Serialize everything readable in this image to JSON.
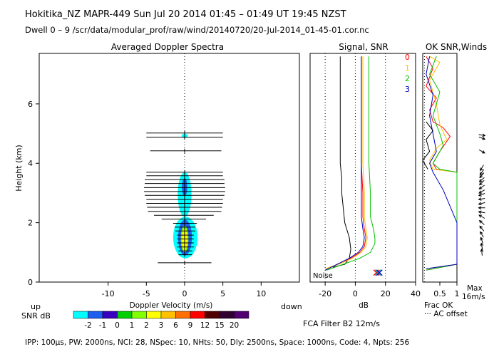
{
  "header": {
    "title": "Hokitika_NZ   MAPR-449   Sun Jul 20 2014 01:45 – 01:49 UT 19:45 NZST",
    "subtitle": "Dwell   0 –   9    /scr/data/modular_prof/raw/wind/20140720/20-Jul-2014_01-45-01.cor.nc"
  },
  "footer": {
    "params": "IPP: 100µs,  PW: 2000ns,  NCI:  28,  NSpec: 10, NHts: 50,  Dly: 2500ns,  Space: 1000ns,  Code: 4,  Npts: 256",
    "fca_filter": "FCA Filter B2 12m/s"
  },
  "colorbar": {
    "label_up": "up",
    "label_down": "down",
    "label_snr": "SNR dB",
    "ticks": [
      "-2",
      "-1",
      "0",
      "1",
      "2",
      "3",
      "6",
      "9",
      "12",
      "15",
      "20"
    ],
    "colors": [
      "#00ffff",
      "#1e5ef0",
      "#3a00c0",
      "#00d000",
      "#80ff00",
      "#ffff00",
      "#ffc000",
      "#ff7000",
      "#ff0000",
      "#500000",
      "#300030",
      "#500070"
    ]
  },
  "chart_data": [
    {
      "type": "heatmap",
      "title": "Averaged Doppler Spectra",
      "xlabel": "Doppler Velocity (m/s)",
      "ylabel": "Height (km)",
      "xlim": [
        -19,
        15
      ],
      "ylim": [
        0,
        7.7
      ],
      "xticks": [
        -10,
        -5,
        0,
        5,
        10
      ],
      "yticks": [
        0,
        2,
        4,
        6
      ],
      "zero_line": "dotted",
      "error_bars": [
        {
          "h": 5.02,
          "lo": -5,
          "hi": 5
        },
        {
          "h": 4.88,
          "lo": -5,
          "hi": 5
        },
        {
          "h": 4.42,
          "lo": -4.5,
          "hi": 4.8
        },
        {
          "h": 3.7,
          "lo": -5,
          "hi": 5
        },
        {
          "h": 3.58,
          "lo": -5,
          "hi": 5
        },
        {
          "h": 3.45,
          "lo": -5.2,
          "hi": 5.2
        },
        {
          "h": 3.32,
          "lo": -5.2,
          "hi": 5.2
        },
        {
          "h": 3.18,
          "lo": -5.3,
          "hi": 5.3
        },
        {
          "h": 3.05,
          "lo": -5.3,
          "hi": 5.3
        },
        {
          "h": 2.92,
          "lo": -5.2,
          "hi": 5.2
        },
        {
          "h": 2.78,
          "lo": -5,
          "hi": 5
        },
        {
          "h": 2.65,
          "lo": -5,
          "hi": 5
        },
        {
          "h": 2.52,
          "lo": -4.9,
          "hi": 4.9
        },
        {
          "h": 2.38,
          "lo": -4.8,
          "hi": 4.8
        },
        {
          "h": 2.25,
          "lo": -4,
          "hi": 3.8
        },
        {
          "h": 2.12,
          "lo": -3,
          "hi": 2.8
        },
        {
          "h": 1.98,
          "lo": -1.5,
          "hi": 1.6
        },
        {
          "h": 1.85,
          "lo": -1.3,
          "hi": 1.4
        },
        {
          "h": 1.72,
          "lo": -1.2,
          "hi": 1.4
        },
        {
          "h": 1.58,
          "lo": -1,
          "hi": 1.2
        },
        {
          "h": 1.45,
          "lo": -1,
          "hi": 1.2
        },
        {
          "h": 1.32,
          "lo": -1,
          "hi": 1.2
        },
        {
          "h": 1.18,
          "lo": -1,
          "hi": 1.2
        },
        {
          "h": 1.05,
          "lo": -0.8,
          "hi": 1
        },
        {
          "h": 0.92,
          "lo": -0.8,
          "hi": 1
        },
        {
          "h": 0.65,
          "lo": -3.5,
          "hi": 3.5
        }
      ],
      "snr_blobs": [
        {
          "h0": 0.8,
          "h1": 2.2,
          "v": 0.1,
          "w": 1.6,
          "color": "#00ffff"
        },
        {
          "h0": 2.2,
          "h1": 3.7,
          "v": 0,
          "w": 0.9,
          "color": "#00ffff"
        },
        {
          "h0": 0.9,
          "h1": 2.1,
          "v": 0.05,
          "w": 0.9,
          "color": "#1e5ef0"
        },
        {
          "h0": 1.0,
          "h1": 1.9,
          "v": 0,
          "w": 0.5,
          "color": "#80ff00"
        },
        {
          "h0": 1.05,
          "h1": 1.8,
          "v": 0,
          "w": 0.35,
          "color": "#ffff00"
        },
        {
          "h0": 2.9,
          "h1": 3.5,
          "v": 0,
          "w": 0.35,
          "color": "#1e5ef0"
        },
        {
          "h0": 4.85,
          "h1": 5.0,
          "v": 0,
          "w": 0.4,
          "color": "#00ffff"
        }
      ]
    },
    {
      "type": "line",
      "title": "Signal, SNR",
      "xlabel": "dB",
      "xlim": [
        -30,
        40
      ],
      "xticks": [
        -20,
        0,
        20,
        40
      ],
      "ylim": [
        0,
        7.7
      ],
      "annotation": "Noise",
      "dotted_x": [
        -20,
        0,
        20
      ],
      "series": [
        {
          "name": "noise",
          "color": "#000000",
          "points": [
            [
              -15,
              0.5
            ],
            [
              -7,
              0.6
            ],
            [
              -4,
              0.8
            ],
            [
              -3,
              1.1
            ],
            [
              -4,
              1.5
            ],
            [
              -7,
              2.0
            ],
            [
              -8,
              2.5
            ],
            [
              -9,
              3.0
            ],
            [
              -9,
              3.5
            ],
            [
              -10,
              4.0
            ],
            [
              -10,
              5.0
            ],
            [
              -10,
              6.0
            ],
            [
              -10,
              7.6
            ]
          ]
        },
        {
          "name": "0",
          "color": "#ff0000",
          "points": [
            [
              -20,
              0.4
            ],
            [
              -12,
              0.6
            ],
            [
              -3,
              0.8
            ],
            [
              3,
              1.0
            ],
            [
              6,
              1.2
            ],
            [
              7,
              1.5
            ],
            [
              6,
              1.8
            ],
            [
              5,
              2.2
            ],
            [
              5,
              3.0
            ],
            [
              4,
              4.0
            ],
            [
              4,
              5.0
            ],
            [
              4,
              6.0
            ],
            [
              4,
              7.6
            ]
          ]
        },
        {
          "name": "1",
          "color": "#ffc000",
          "points": [
            [
              -20,
              0.45
            ],
            [
              -11,
              0.6
            ],
            [
              -2,
              0.8
            ],
            [
              4,
              1.0
            ],
            [
              7,
              1.2
            ],
            [
              8,
              1.5
            ],
            [
              7,
              1.8
            ],
            [
              6,
              2.2
            ],
            [
              6,
              3.0
            ],
            [
              5,
              4.0
            ],
            [
              5,
              5.0
            ],
            [
              5,
              6.0
            ],
            [
              5,
              7.6
            ]
          ]
        },
        {
          "name": "2",
          "color": "#00c000",
          "points": [
            [
              -19,
              0.4
            ],
            [
              -8,
              0.6
            ],
            [
              3,
              0.8
            ],
            [
              10,
              1.0
            ],
            [
              13,
              1.3
            ],
            [
              13,
              1.5
            ],
            [
              12,
              1.8
            ],
            [
              10,
              2.2
            ],
            [
              10,
              3.0
            ],
            [
              9,
              4.0
            ],
            [
              9,
              5.0
            ],
            [
              9,
              6.0
            ],
            [
              9,
              7.6
            ]
          ]
        },
        {
          "name": "3",
          "color": "#0000c0",
          "points": [
            [
              -20,
              0.4
            ],
            [
              -12,
              0.6
            ],
            [
              -4,
              0.8
            ],
            [
              2,
              1.0
            ],
            [
              5,
              1.2
            ],
            [
              6,
              1.5
            ],
            [
              5,
              1.8
            ],
            [
              4,
              2.2
            ],
            [
              4,
              3.0
            ],
            [
              4,
              4.0
            ],
            [
              4,
              5.0
            ],
            [
              4,
              6.0
            ],
            [
              4,
              7.6
            ]
          ]
        }
      ],
      "markers": [
        {
          "x": 14,
          "y": 0.15,
          "color": "#ff0000"
        },
        {
          "x": 15,
          "y": 0.15,
          "color": "#00a0a0"
        },
        {
          "x": 16,
          "y": 0.15,
          "color": "#0000c0"
        }
      ]
    },
    {
      "type": "line",
      "title": "OK SNR,Winds",
      "legend": [
        "0",
        "1",
        "2",
        "3"
      ],
      "legend_colors": [
        "#ff0000",
        "#ffc000",
        "#00c000",
        "#0000c0"
      ],
      "legend_placement": "top-left",
      "xlim": [
        0,
        1
      ],
      "xticks": [
        "0.5",
        "1"
      ],
      "ylim": [
        0,
        7.7
      ],
      "labels": {
        "frac_ok": "Frac OK",
        "ac_offset": "··· AC offset",
        "max": "Max",
        "max_speed": "16m/s"
      },
      "ac_offset_x": 0.05,
      "series": [
        {
          "name": "0",
          "color": "#ff0000",
          "points": [
            [
              0.1,
              0.4
            ],
            [
              1.0,
              0.6
            ],
            [
              1.0,
              3.7
            ],
            [
              0.4,
              3.8
            ],
            [
              0.3,
              4.0
            ],
            [
              0.5,
              4.4
            ],
            [
              0.8,
              4.9
            ],
            [
              0.6,
              5.2
            ],
            [
              0.3,
              5.4
            ],
            [
              0.2,
              5.8
            ],
            [
              0.4,
              6.2
            ],
            [
              0.1,
              6.6
            ],
            [
              0.3,
              7.2
            ],
            [
              0.1,
              7.6
            ]
          ]
        },
        {
          "name": "1",
          "color": "#ffc000",
          "points": [
            [
              0.1,
              0.45
            ],
            [
              1.0,
              0.6
            ],
            [
              1.0,
              3.7
            ],
            [
              0.3,
              3.8
            ],
            [
              0.2,
              4.1
            ],
            [
              0.4,
              4.5
            ],
            [
              0.7,
              4.8
            ],
            [
              0.5,
              5.3
            ],
            [
              0.4,
              6.0
            ],
            [
              0.2,
              6.8
            ],
            [
              0.5,
              7.4
            ],
            [
              0.2,
              7.6
            ]
          ]
        },
        {
          "name": "2",
          "color": "#00c000",
          "points": [
            [
              0.1,
              0.4
            ],
            [
              1.0,
              0.6
            ],
            [
              1.0,
              3.7
            ],
            [
              0.5,
              3.8
            ],
            [
              0.3,
              4.0
            ],
            [
              0.6,
              4.6
            ],
            [
              0.5,
              5.0
            ],
            [
              0.3,
              5.6
            ],
            [
              0.5,
              6.4
            ],
            [
              0.2,
              7.0
            ],
            [
              0.4,
              7.6
            ]
          ]
        },
        {
          "name": "3",
          "color": "#0000c0",
          "points": [
            [
              0.1,
              0.45
            ],
            [
              1.0,
              0.6
            ],
            [
              1.0,
              2.0
            ],
            [
              0.6,
              3.1
            ],
            [
              0.3,
              3.7
            ],
            [
              0.2,
              4.0
            ],
            [
              0.4,
              4.4
            ],
            [
              0.3,
              5.0
            ],
            [
              0.2,
              5.6
            ],
            [
              0.3,
              6.3
            ],
            [
              0.1,
              7.0
            ],
            [
              0.2,
              7.6
            ]
          ]
        },
        {
          "name": "frac",
          "color": "#000000",
          "points": [
            [
              0.15,
              3.8
            ],
            [
              0.0,
              4.1
            ],
            [
              0.2,
              4.4
            ],
            [
              0.1,
              4.8
            ],
            [
              0.3,
              5.1
            ],
            [
              0.1,
              5.4
            ]
          ]
        }
      ],
      "wind_arrows": [
        {
          "h": 4.95,
          "dir": 100
        },
        {
          "h": 4.85,
          "dir": 110
        },
        {
          "h": 4.4,
          "dir": 120
        },
        {
          "h": 3.85,
          "dir": 210
        },
        {
          "h": 3.7,
          "dir": 215
        },
        {
          "h": 3.6,
          "dir": 220
        },
        {
          "h": 3.45,
          "dir": 230
        },
        {
          "h": 3.35,
          "dir": 225
        },
        {
          "h": 3.2,
          "dir": 235
        },
        {
          "h": 3.05,
          "dir": 240
        },
        {
          "h": 2.95,
          "dir": 250
        },
        {
          "h": 2.8,
          "dir": 260
        },
        {
          "h": 2.65,
          "dir": 255
        },
        {
          "h": 2.5,
          "dir": 270
        },
        {
          "h": 2.35,
          "dir": 280
        },
        {
          "h": 2.2,
          "dir": 300
        },
        {
          "h": 2.0,
          "dir": 310
        },
        {
          "h": 1.8,
          "dir": 320
        },
        {
          "h": 1.6,
          "dir": 330
        },
        {
          "h": 1.4,
          "dir": 340
        },
        {
          "h": 1.2,
          "dir": 350
        },
        {
          "h": 1.0,
          "dir": 355
        }
      ]
    }
  ]
}
